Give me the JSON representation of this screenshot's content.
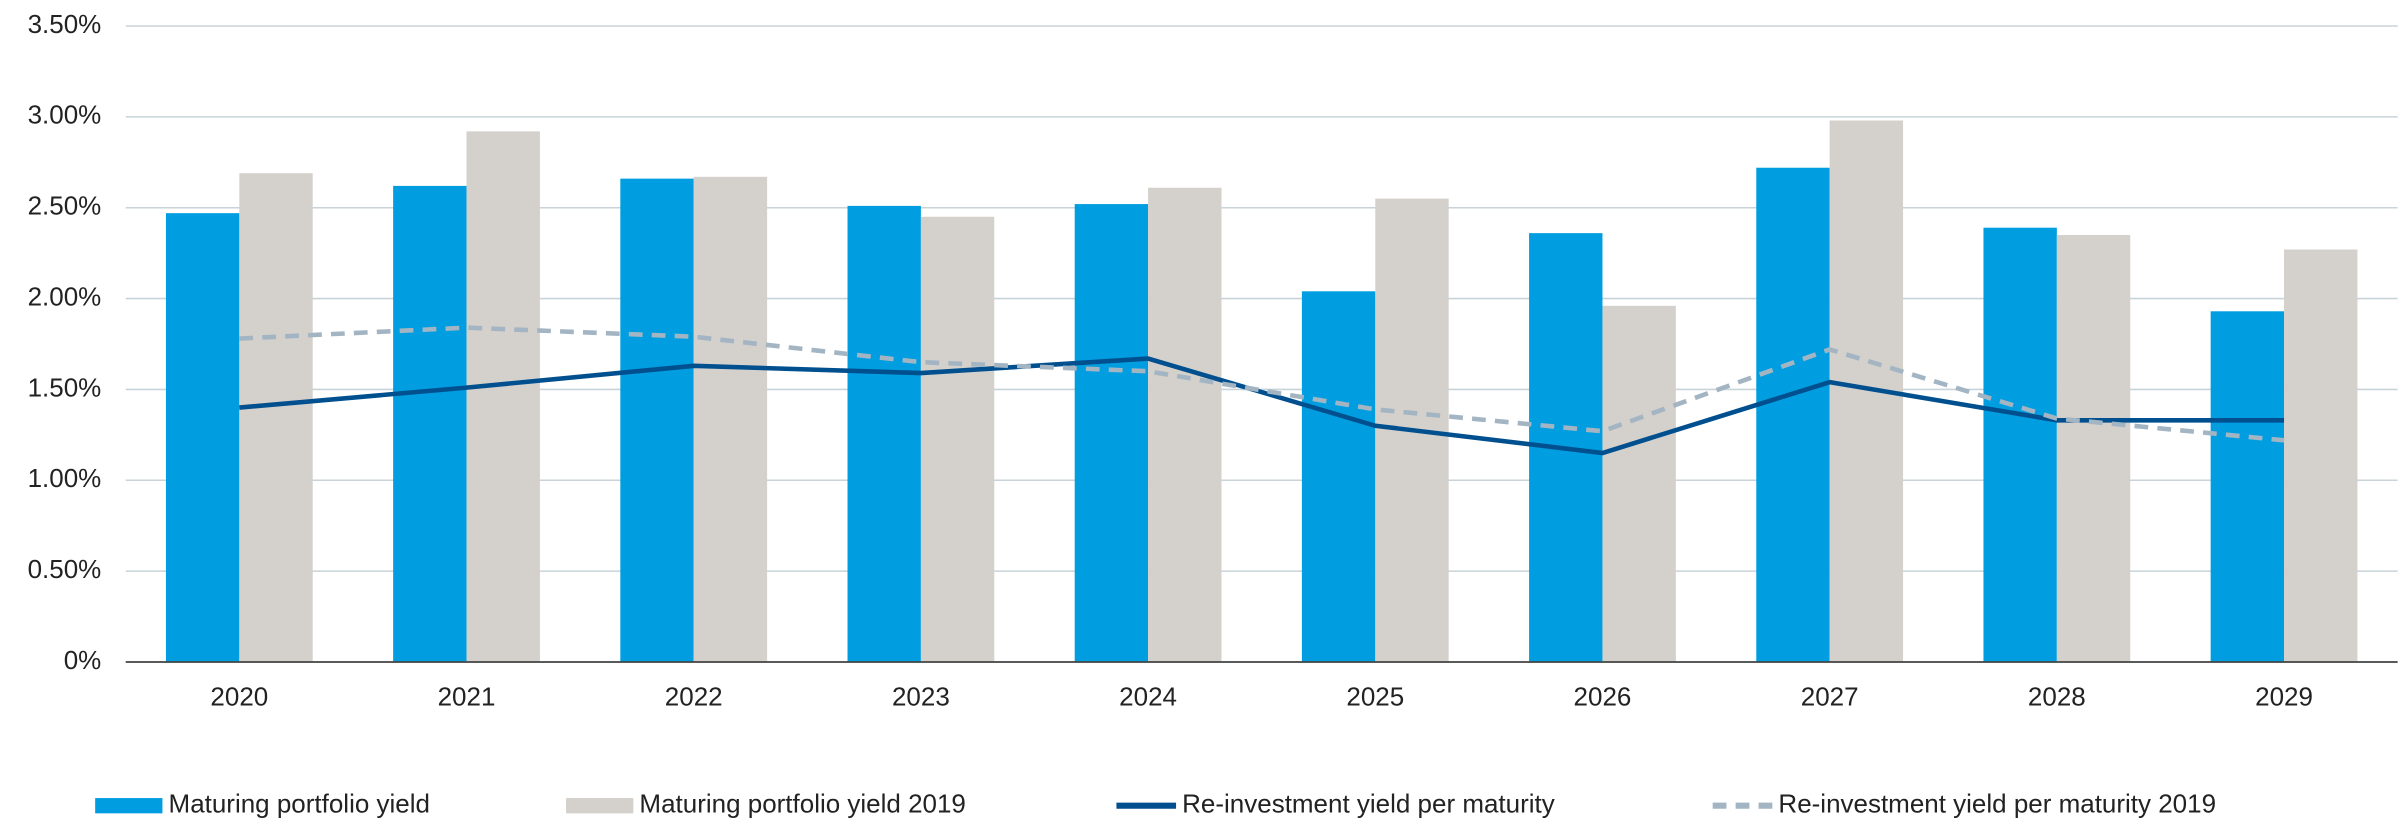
{
  "chart_data": {
    "type": "bar_line",
    "categories": [
      "2020",
      "2021",
      "2022",
      "2023",
      "2024",
      "2025",
      "2026",
      "2027",
      "2028",
      "2029"
    ],
    "series": [
      {
        "name": "Maturing portfolio yield",
        "type": "bar",
        "color": "#009ee0",
        "values": [
          2.47,
          2.62,
          2.66,
          2.51,
          2.52,
          2.04,
          2.36,
          2.72,
          2.39,
          1.93
        ]
      },
      {
        "name": "Maturing portfolio yield 2019",
        "type": "bar",
        "color": "#d4d0cc",
        "values": [
          2.69,
          2.92,
          2.67,
          2.45,
          2.61,
          2.55,
          1.96,
          2.98,
          2.35,
          2.27
        ]
      },
      {
        "name": "Re-investment yield per maturity",
        "type": "line",
        "color": "#004f8f",
        "values": [
          1.4,
          1.51,
          1.63,
          1.59,
          1.67,
          1.3,
          1.15,
          1.54,
          1.33,
          1.33
        ]
      },
      {
        "name": "Re-investment yield per maturity 2019",
        "type": "line",
        "dashed": true,
        "color": "#a3b5c3",
        "values": [
          1.78,
          1.84,
          1.79,
          1.65,
          1.6,
          1.39,
          1.27,
          1.72,
          1.34,
          1.22
        ]
      }
    ],
    "ylim": [
      0,
      3.5
    ],
    "yticks": [
      {
        "value": 0,
        "label": "0%"
      },
      {
        "value": 0.5,
        "label": "0.50%"
      },
      {
        "value": 1,
        "label": "1.00%"
      },
      {
        "value": 1.5,
        "label": "1.50%"
      },
      {
        "value": 2,
        "label": "2.00%"
      },
      {
        "value": 2.5,
        "label": "2.50%"
      },
      {
        "value": 3,
        "label": "3.00%"
      },
      {
        "value": 3.5,
        "label": "3.50%"
      }
    ],
    "grid": true,
    "legend": "bottom"
  }
}
